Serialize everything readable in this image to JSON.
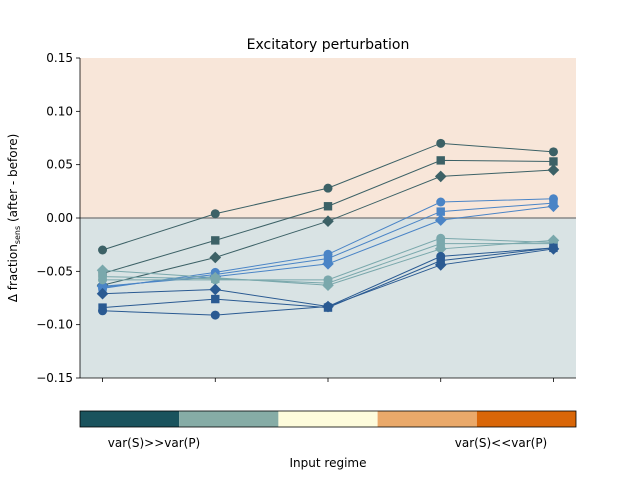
{
  "chart_data": {
    "type": "line",
    "title": "Excitatory perturbation",
    "ylabel_main": "Δ fraction",
    "ylabel_sub": "sens",
    "ylabel_tail": " (after - before)",
    "xlabel": "Input regime",
    "ylim": [
      -0.15,
      0.15
    ],
    "yticks": [
      "−0.15",
      "−0.10",
      "−0.05",
      "0.00",
      "0.05",
      "0.10",
      "0.15"
    ],
    "ytick_values": [
      -0.15,
      -0.1,
      -0.05,
      0.0,
      0.05,
      0.1,
      0.15
    ],
    "x": [
      1,
      2,
      3,
      4,
      5
    ],
    "xlim": [
      0.8,
      5.2
    ],
    "reference_line": 0.0,
    "regions": [
      {
        "from": 0.0,
        "to": 0.15,
        "color": "#f8e6d9"
      },
      {
        "from": -0.15,
        "to": 0.0,
        "color": "#d9e3e4"
      }
    ],
    "colorbar": {
      "colors": [
        "#1a535d",
        "#86aca6",
        "#fefcdc",
        "#eaa96a",
        "#d96608"
      ],
      "left_label": "var(S)>>var(P)",
      "right_label": "var(S)<<var(P)"
    },
    "series": [
      {
        "color": "#3c6166",
        "marker": "circle",
        "values": [
          -0.03,
          0.004,
          0.028,
          0.07,
          0.062
        ]
      },
      {
        "color": "#3c6166",
        "marker": "square",
        "values": [
          -0.052,
          -0.021,
          0.011,
          0.054,
          0.053
        ]
      },
      {
        "color": "#3c6166",
        "marker": "diamond",
        "values": [
          -0.063,
          -0.037,
          -0.003,
          0.039,
          0.045
        ]
      },
      {
        "color": "#4a84c6",
        "marker": "circle",
        "values": [
          -0.066,
          -0.051,
          -0.034,
          0.015,
          0.018
        ]
      },
      {
        "color": "#4a84c6",
        "marker": "square",
        "values": [
          -0.065,
          -0.053,
          -0.038,
          0.006,
          0.014
        ]
      },
      {
        "color": "#4a84c6",
        "marker": "diamond",
        "values": [
          -0.064,
          -0.055,
          -0.043,
          -0.002,
          0.011
        ]
      },
      {
        "color": "#7aa8ac",
        "marker": "circle",
        "values": [
          -0.058,
          -0.058,
          -0.058,
          -0.019,
          -0.023
        ]
      },
      {
        "color": "#7aa8ac",
        "marker": "square",
        "values": [
          -0.055,
          -0.057,
          -0.061,
          -0.024,
          -0.024
        ]
      },
      {
        "color": "#7aa8ac",
        "marker": "diamond",
        "values": [
          -0.049,
          -0.056,
          -0.063,
          -0.029,
          -0.021
        ]
      },
      {
        "color": "#2a5a92",
        "marker": "circle",
        "values": [
          -0.087,
          -0.091,
          -0.083,
          -0.036,
          -0.028
        ]
      },
      {
        "color": "#2a5a92",
        "marker": "square",
        "values": [
          -0.084,
          -0.076,
          -0.084,
          -0.04,
          -0.028
        ]
      },
      {
        "color": "#2a5a92",
        "marker": "diamond",
        "values": [
          -0.071,
          -0.067,
          -0.083,
          -0.044,
          -0.029
        ]
      }
    ]
  }
}
